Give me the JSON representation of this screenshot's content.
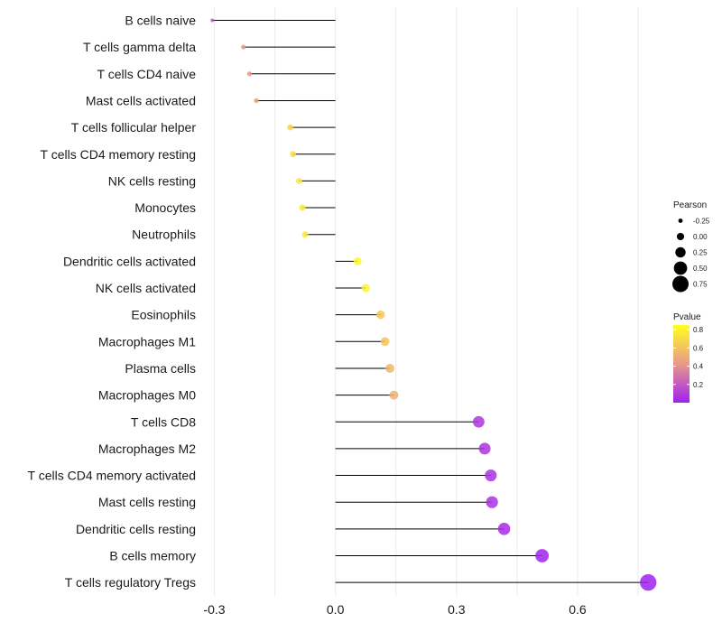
{
  "chart_data": {
    "type": "lollipop",
    "title": "",
    "xlabel": "",
    "ylabel": "",
    "xlim": [
      -0.31,
      0.77
    ],
    "xticks": [
      -0.3,
      0.0,
      0.3,
      0.6
    ],
    "xtick_labels": [
      "-0.3",
      "0.0",
      "0.3",
      "0.6"
    ],
    "categories": [
      "B cells naive",
      "T cells gamma delta",
      "T cells CD4 naive",
      "Mast cells activated",
      "T cells follicular helper",
      "T cells CD4 memory resting",
      "NK cells resting",
      "Monocytes",
      "Neutrophils",
      "Dendritic cells activated",
      "NK cells activated",
      "Eosinophils",
      "Macrophages M1",
      "Plasma cells",
      "Macrophages M0",
      "T cells CD8",
      "Macrophages M2",
      "T cells CD4 memory activated",
      "Mast cells resting",
      "Dendritic cells resting",
      "B cells memory",
      "T cells regulatory  Tregs"
    ],
    "pearson": [
      -0.305,
      -0.228,
      -0.213,
      -0.196,
      -0.112,
      -0.105,
      -0.09,
      -0.082,
      -0.075,
      0.055,
      0.075,
      0.112,
      0.123,
      0.135,
      0.145,
      0.355,
      0.37,
      0.385,
      0.388,
      0.418,
      0.512,
      0.775
    ],
    "pvalue": [
      0.2,
      0.4,
      0.42,
      0.45,
      0.68,
      0.7,
      0.75,
      0.76,
      0.77,
      0.82,
      0.81,
      0.62,
      0.6,
      0.55,
      0.52,
      0.08,
      0.07,
      0.06,
      0.06,
      0.04,
      0.01,
      0.001
    ],
    "legend_size": {
      "title": "Pearson",
      "values": [
        -0.25,
        0.0,
        0.25,
        0.5,
        0.75
      ],
      "labels": [
        "-0.25",
        "0.00",
        "0.25",
        "0.50",
        "0.75"
      ]
    },
    "legend_color": {
      "title": "Pvalue",
      "ticks": [
        0.8,
        0.6,
        0.4,
        0.2
      ],
      "tick_labels": [
        "0.8",
        "0.6",
        "0.4",
        "0.2"
      ],
      "range": [
        0.0,
        0.85
      ],
      "color_low": "#a020f0",
      "color_mid": "#e89a8a",
      "color_high": "#ffff20"
    }
  }
}
